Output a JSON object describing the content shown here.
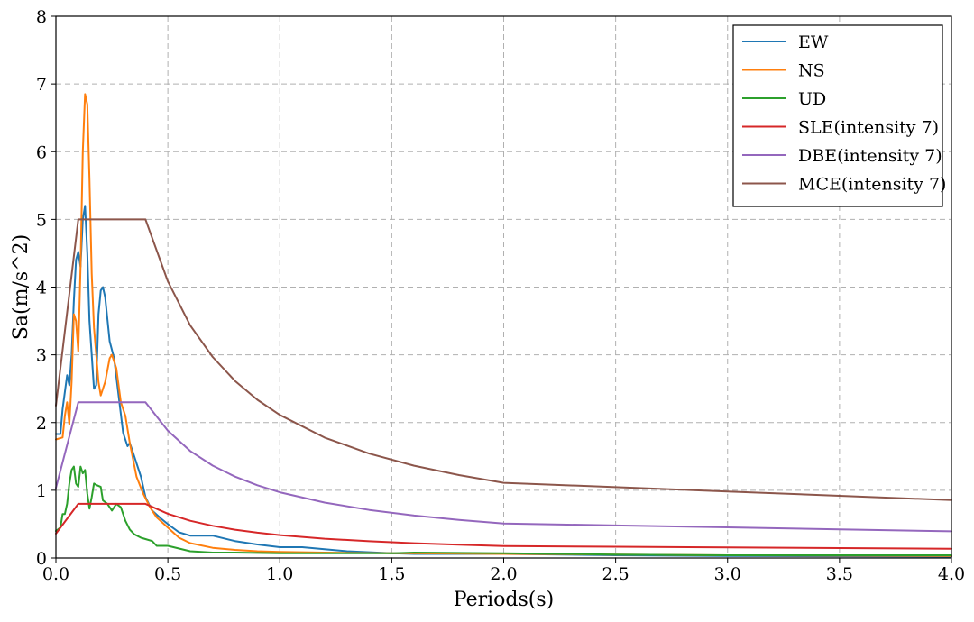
{
  "chart_data": {
    "type": "line",
    "title": "",
    "xlabel": "Periods(s)",
    "ylabel": "Sa(m/s^2)",
    "xlim": [
      0,
      4
    ],
    "ylim": [
      0,
      8
    ],
    "xticks": [
      0.0,
      0.5,
      1.0,
      1.5,
      2.0,
      2.5,
      3.0,
      3.5,
      4.0
    ],
    "xtick_labels": [
      "0.0",
      "0.5",
      "1.0",
      "1.5",
      "2.0",
      "2.5",
      "3.0",
      "3.5",
      "4.0"
    ],
    "yticks": [
      0,
      1,
      2,
      3,
      4,
      5,
      6,
      7,
      8
    ],
    "ytick_labels": [
      "0",
      "1",
      "2",
      "3",
      "4",
      "5",
      "6",
      "7",
      "8"
    ],
    "grid": true,
    "legend_position": "top-right",
    "series": [
      {
        "name": "EW",
        "color": "#1f77b4",
        "points": [
          [
            0,
            1.83
          ],
          [
            0.02,
            1.83
          ],
          [
            0.03,
            2.2
          ],
          [
            0.05,
            2.7
          ],
          [
            0.06,
            2.55
          ],
          [
            0.07,
            3.0
          ],
          [
            0.08,
            3.8
          ],
          [
            0.09,
            4.4
          ],
          [
            0.1,
            4.52
          ],
          [
            0.11,
            4.3
          ],
          [
            0.12,
            5.0
          ],
          [
            0.13,
            5.2
          ],
          [
            0.14,
            4.5
          ],
          [
            0.15,
            3.5
          ],
          [
            0.17,
            2.5
          ],
          [
            0.18,
            2.55
          ],
          [
            0.19,
            3.6
          ],
          [
            0.2,
            3.95
          ],
          [
            0.21,
            4.0
          ],
          [
            0.22,
            3.85
          ],
          [
            0.24,
            3.2
          ],
          [
            0.26,
            2.95
          ],
          [
            0.28,
            2.4
          ],
          [
            0.3,
            1.85
          ],
          [
            0.32,
            1.65
          ],
          [
            0.33,
            1.7
          ],
          [
            0.35,
            1.5
          ],
          [
            0.38,
            1.2
          ],
          [
            0.4,
            0.9
          ],
          [
            0.43,
            0.7
          ],
          [
            0.47,
            0.58
          ],
          [
            0.5,
            0.5
          ],
          [
            0.55,
            0.38
          ],
          [
            0.6,
            0.33
          ],
          [
            0.7,
            0.33
          ],
          [
            0.8,
            0.25
          ],
          [
            0.9,
            0.2
          ],
          [
            1.0,
            0.16
          ],
          [
            1.1,
            0.16
          ],
          [
            1.2,
            0.13
          ],
          [
            1.3,
            0.1
          ],
          [
            1.5,
            0.07
          ],
          [
            1.6,
            0.06
          ],
          [
            2.0,
            0.06
          ],
          [
            2.5,
            0.04
          ],
          [
            3.0,
            0.03
          ],
          [
            3.5,
            0.025
          ],
          [
            4.0,
            0.02
          ]
        ]
      },
      {
        "name": "NS",
        "color": "#ff7f0e",
        "points": [
          [
            0,
            1.75
          ],
          [
            0.03,
            1.78
          ],
          [
            0.04,
            2.1
          ],
          [
            0.05,
            2.3
          ],
          [
            0.06,
            1.97
          ],
          [
            0.07,
            2.6
          ],
          [
            0.08,
            3.6
          ],
          [
            0.09,
            3.5
          ],
          [
            0.1,
            3.05
          ],
          [
            0.11,
            4.3
          ],
          [
            0.12,
            6.0
          ],
          [
            0.13,
            6.85
          ],
          [
            0.14,
            6.7
          ],
          [
            0.15,
            5.6
          ],
          [
            0.16,
            4.2
          ],
          [
            0.17,
            3.4
          ],
          [
            0.18,
            3.0
          ],
          [
            0.19,
            2.6
          ],
          [
            0.2,
            2.4
          ],
          [
            0.22,
            2.6
          ],
          [
            0.24,
            2.95
          ],
          [
            0.25,
            3.0
          ],
          [
            0.27,
            2.8
          ],
          [
            0.29,
            2.3
          ],
          [
            0.31,
            2.1
          ],
          [
            0.33,
            1.7
          ],
          [
            0.36,
            1.2
          ],
          [
            0.39,
            0.95
          ],
          [
            0.42,
            0.75
          ],
          [
            0.45,
            0.6
          ],
          [
            0.5,
            0.45
          ],
          [
            0.55,
            0.3
          ],
          [
            0.6,
            0.22
          ],
          [
            0.7,
            0.15
          ],
          [
            0.8,
            0.12
          ],
          [
            0.9,
            0.1
          ],
          [
            1.0,
            0.09
          ],
          [
            1.2,
            0.08
          ],
          [
            1.5,
            0.07
          ],
          [
            2.0,
            0.06
          ],
          [
            2.5,
            0.05
          ],
          [
            3.0,
            0.04
          ],
          [
            3.5,
            0.035
          ],
          [
            4.0,
            0.03
          ]
        ]
      },
      {
        "name": "UD",
        "color": "#2ca02c",
        "points": [
          [
            0,
            0.4
          ],
          [
            0.02,
            0.45
          ],
          [
            0.03,
            0.65
          ],
          [
            0.04,
            0.65
          ],
          [
            0.05,
            0.8
          ],
          [
            0.06,
            1.1
          ],
          [
            0.07,
            1.3
          ],
          [
            0.08,
            1.35
          ],
          [
            0.09,
            1.1
          ],
          [
            0.1,
            1.05
          ],
          [
            0.11,
            1.35
          ],
          [
            0.12,
            1.25
          ],
          [
            0.13,
            1.3
          ],
          [
            0.14,
            0.95
          ],
          [
            0.15,
            0.73
          ],
          [
            0.16,
            0.9
          ],
          [
            0.17,
            1.1
          ],
          [
            0.18,
            1.08
          ],
          [
            0.2,
            1.05
          ],
          [
            0.21,
            0.85
          ],
          [
            0.23,
            0.8
          ],
          [
            0.25,
            0.7
          ],
          [
            0.27,
            0.8
          ],
          [
            0.29,
            0.75
          ],
          [
            0.31,
            0.55
          ],
          [
            0.33,
            0.42
          ],
          [
            0.35,
            0.35
          ],
          [
            0.38,
            0.3
          ],
          [
            0.4,
            0.28
          ],
          [
            0.43,
            0.25
          ],
          [
            0.45,
            0.18
          ],
          [
            0.5,
            0.18
          ],
          [
            0.55,
            0.14
          ],
          [
            0.6,
            0.1
          ],
          [
            0.7,
            0.08
          ],
          [
            0.8,
            0.08
          ],
          [
            1.0,
            0.07
          ],
          [
            1.2,
            0.07
          ],
          [
            1.5,
            0.07
          ],
          [
            1.6,
            0.08
          ],
          [
            2.0,
            0.07
          ],
          [
            2.5,
            0.05
          ],
          [
            3.0,
            0.04
          ],
          [
            3.5,
            0.04
          ],
          [
            4.0,
            0.04
          ]
        ]
      },
      {
        "name": "SLE(intensity 7)",
        "color": "#d62728",
        "points": [
          [
            0,
            0.36
          ],
          [
            0.1,
            0.8
          ],
          [
            0.4,
            0.8
          ],
          [
            0.5,
            0.653
          ],
          [
            0.6,
            0.55
          ],
          [
            0.7,
            0.475
          ],
          [
            0.8,
            0.418
          ],
          [
            0.9,
            0.374
          ],
          [
            1.0,
            0.338
          ],
          [
            1.2,
            0.285
          ],
          [
            1.4,
            0.247
          ],
          [
            1.6,
            0.218
          ],
          [
            1.8,
            0.196
          ],
          [
            2.0,
            0.177
          ],
          [
            2.5,
            0.167
          ],
          [
            3.0,
            0.157
          ],
          [
            3.5,
            0.147
          ],
          [
            4.0,
            0.137
          ]
        ]
      },
      {
        "name": "DBE(intensity 7)",
        "color": "#9467bd",
        "points": [
          [
            0,
            1.035
          ],
          [
            0.1,
            2.3
          ],
          [
            0.4,
            2.3
          ],
          [
            0.5,
            1.879
          ],
          [
            0.6,
            1.58
          ],
          [
            0.7,
            1.365
          ],
          [
            0.8,
            1.202
          ],
          [
            0.9,
            1.074
          ],
          [
            1.0,
            0.971
          ],
          [
            1.2,
            0.818
          ],
          [
            1.4,
            0.709
          ],
          [
            1.6,
            0.627
          ],
          [
            1.8,
            0.563
          ],
          [
            2.0,
            0.51
          ],
          [
            2.5,
            0.481
          ],
          [
            3.0,
            0.452
          ],
          [
            3.5,
            0.423
          ],
          [
            4.0,
            0.394
          ]
        ]
      },
      {
        "name": "MCE(intensity 7)",
        "color": "#8c564b",
        "points": [
          [
            0,
            2.25
          ],
          [
            0.1,
            5.0
          ],
          [
            0.4,
            5.0
          ],
          [
            0.5,
            4.085
          ],
          [
            0.6,
            3.435
          ],
          [
            0.7,
            2.968
          ],
          [
            0.8,
            2.614
          ],
          [
            0.9,
            2.336
          ],
          [
            1.0,
            2.112
          ],
          [
            1.2,
            1.778
          ],
          [
            1.4,
            1.541
          ],
          [
            1.6,
            1.363
          ],
          [
            1.8,
            1.224
          ],
          [
            2.0,
            1.11
          ],
          [
            2.5,
            1.046
          ],
          [
            3.0,
            0.982
          ],
          [
            3.5,
            0.918
          ],
          [
            4.0,
            0.854
          ]
        ]
      }
    ]
  }
}
